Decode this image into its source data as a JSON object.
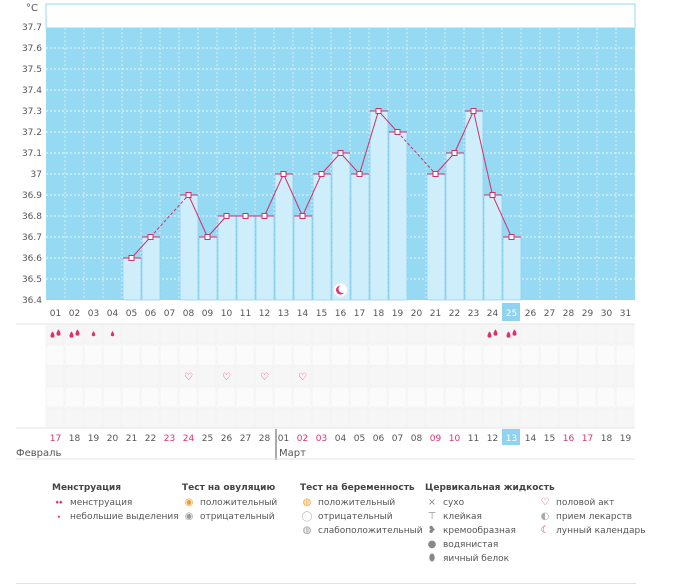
{
  "chart_data": {
    "type": "bar",
    "unit": "°C",
    "ylim": [
      36.4,
      37.8
    ],
    "y_ticks": [
      "37.7",
      "37.6",
      "37.5",
      "37.4",
      "37.3",
      "37.2",
      "37.1",
      "37",
      "36.9",
      "36.8",
      "36.7",
      "36.6",
      "36.5",
      "36.4"
    ],
    "x_ticks": [
      "01",
      "02",
      "03",
      "04",
      "05",
      "06",
      "07",
      "08",
      "09",
      "10",
      "11",
      "12",
      "13",
      "14",
      "15",
      "16",
      "17",
      "18",
      "19",
      "20",
      "21",
      "22",
      "23",
      "24",
      "25",
      "26",
      "27",
      "28",
      "29",
      "30",
      "31"
    ],
    "values": [
      null,
      null,
      null,
      null,
      36.6,
      36.7,
      null,
      36.9,
      36.7,
      36.8,
      36.8,
      36.8,
      37.0,
      36.8,
      37.0,
      37.1,
      37.0,
      37.3,
      37.2,
      null,
      37.0,
      37.1,
      37.3,
      36.9,
      36.7,
      null,
      null,
      null,
      null,
      null,
      null
    ],
    "today_index": 24,
    "grid": true
  },
  "markers": {
    "lunar_icon_index": 15,
    "menstruation": [
      {
        "day": 0,
        "type": "heavy"
      },
      {
        "day": 1,
        "type": "heavy"
      },
      {
        "day": 2,
        "type": "light"
      },
      {
        "day": 3,
        "type": "light"
      },
      {
        "day": 23,
        "type": "heavy"
      },
      {
        "day": 24,
        "type": "heavy"
      }
    ],
    "intercourse_days": [
      7,
      9,
      11,
      13
    ]
  },
  "dates": {
    "values": [
      "17",
      "18",
      "19",
      "20",
      "21",
      "22",
      "23",
      "24",
      "25",
      "26",
      "27",
      "28",
      "01",
      "02",
      "03",
      "04",
      "05",
      "06",
      "07",
      "08",
      "09",
      "10",
      "11",
      "12",
      "13",
      "14",
      "15",
      "16",
      "17",
      "18",
      "19"
    ],
    "red_indices": [
      0,
      6,
      7,
      13,
      14,
      20,
      21,
      27,
      28
    ],
    "today_index": 24,
    "month_1": "Февраль",
    "month_2": "Март"
  },
  "legend": {
    "menstruation": {
      "title": "Менструация",
      "items": [
        {
          "icon": "drop-pair-icon",
          "label": "менструация"
        },
        {
          "icon": "drop-small-icon",
          "label": "небольшие выделения"
        }
      ]
    },
    "ovulation": {
      "title": "Тест на овуляцию",
      "items": [
        {
          "icon": "ovulation-positive-icon",
          "label": "положительный"
        },
        {
          "icon": "ovulation-negative-icon",
          "label": "отрицательный"
        }
      ]
    },
    "pregnancy": {
      "title": "Тест на беременность",
      "items": [
        {
          "icon": "pregnancy-positive-icon",
          "label": "положительный"
        },
        {
          "icon": "pregnancy-negative-icon",
          "label": "отрицательный"
        },
        {
          "icon": "pregnancy-weak-icon",
          "label": "слабоположительный"
        }
      ]
    },
    "cervical": {
      "title": "Цервикальная жидкость",
      "items": [
        {
          "icon": "dry-icon",
          "label": "сухо"
        },
        {
          "icon": "sticky-icon",
          "label": "клейкая"
        },
        {
          "icon": "creamy-icon",
          "label": "кремообразная"
        },
        {
          "icon": "watery-icon",
          "label": "водянистая"
        },
        {
          "icon": "egg-white-icon",
          "label": "яичный белок"
        }
      ]
    },
    "other": {
      "items": [
        {
          "icon": "heart-icon",
          "label": "половой акт"
        },
        {
          "icon": "pill-icon",
          "label": "прием лекарств"
        },
        {
          "icon": "moon-icon",
          "label": "лунный календарь"
        }
      ]
    }
  },
  "colors": {
    "plot_bg": "#95d9f3",
    "bar": "#cfeefc",
    "bar_stroke": "#7ec9ec",
    "line": "#d0306a",
    "accent_red": "#e0306a",
    "today": "#8fd3ef"
  }
}
